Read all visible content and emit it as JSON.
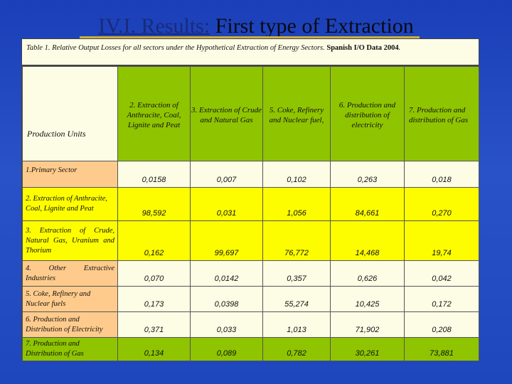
{
  "slide": {
    "title_prefix": "IV.I. Results:",
    "title_rest": " First type of Extraction"
  },
  "caption": {
    "text_italic": "Table 1. Relative Output Losses for all sectors under the Hypothetical Extraction of Energy Sectors. ",
    "text_bold": "Spanish I/O Data 2004",
    "text_end": "."
  },
  "table": {
    "corner_label": "Production Units",
    "columns": [
      "2. Extraction of Anthracite, Coal, Lignite and Peat",
      "3. Extraction of Crude and Natural Gas",
      "5. Coke, Refinery and Nuclear fuel,",
      "6. Production and distribution of electricity",
      "7. Production and distribution of Gas"
    ],
    "rows": [
      {
        "label": "1.Primary Sector",
        "values": [
          "0,0158",
          "0,007",
          "0,102",
          "0,263",
          "0,018"
        ]
      },
      {
        "label": "2. Extraction of Anthracite, Coal, Lignite and Peat",
        "values": [
          "98,592",
          "0,031",
          "1,056",
          "84,661",
          "0,270"
        ]
      },
      {
        "label": "3. Extraction of Crude, Natural Gas, Uranium and Thorium",
        "values": [
          "0,162",
          "99,697",
          "76,772",
          "14,468",
          "19,74"
        ]
      },
      {
        "label": "4. Other Extractive Industries",
        "values": [
          "0,070",
          "0,0142",
          "0,357",
          "0,626",
          "0,042"
        ]
      },
      {
        "label": "5. Coke, Refinery and Nuclear fuels",
        "values": [
          "0,173",
          "0,0398",
          "55,274",
          "10,425",
          "0,172"
        ]
      },
      {
        "label": "6. Production and Distribution of Electricity",
        "values": [
          "0,371",
          "0,033",
          "1,013",
          "71,902",
          "0,208"
        ]
      },
      {
        "label": "7. Production and Distribution of Gas",
        "values": [
          "0,134",
          "0,089",
          "0,782",
          "30,261",
          "73,881"
        ]
      }
    ]
  },
  "colors": {
    "background": "#1e46bd",
    "header_green": "#8fc400",
    "highlight_yellow": "#fdfd00",
    "label_orange": "#ffcb8c",
    "cell_cream": "#fdfde6"
  }
}
